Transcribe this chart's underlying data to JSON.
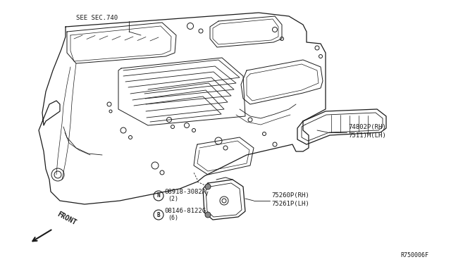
{
  "bg_color": "#ffffff",
  "line_color": "#1a1a1a",
  "text_color": "#1a1a1a",
  "fig_width": 6.4,
  "fig_height": 3.72,
  "dpi": 100,
  "labels": {
    "see_sec": "SEE SEC.740",
    "part1_rh": "74802P(RH)",
    "part1_lh": "7511)M(LH)",
    "nut_label": "N08918-3082A",
    "nut_qty": "(2)",
    "bolt_label": "B08146-8122G",
    "bolt_qty": "(6)",
    "part2_rh": "75260P(RH)",
    "part2_lh": "75261P(LH)",
    "front": "FRONT",
    "ref_num": "R750006F"
  },
  "font_size_small": 6.5,
  "font_size_tiny": 6.0
}
